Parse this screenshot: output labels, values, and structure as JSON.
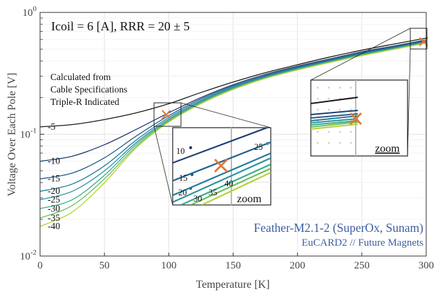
{
  "chart_data": {
    "type": "line",
    "title": "",
    "xlabel": "Temperature [K]",
    "ylabel": "Voltage Over Each Pole [V]",
    "xlim": [
      0,
      300
    ],
    "ylim": [
      0.01,
      1
    ],
    "yscale": "log",
    "grid": true,
    "x_ticks": [
      "0",
      "50",
      "100",
      "150",
      "200",
      "250",
      "300"
    ],
    "y_ticks": [
      {
        "base": "10",
        "exp": "0",
        "value": 1
      },
      {
        "base": "10",
        "exp": "-1",
        "value": 0.1
      },
      {
        "base": "10",
        "exp": "-2",
        "value": 0.01
      }
    ],
    "annotations": {
      "top_left": "Icoil = 6 [A], RRR = 20 ± 5",
      "calc_lines": [
        "Calculated from",
        "Cable Specifications",
        "Triple-R Indicated"
      ],
      "footer_line1": "Feather-M2.1-2 (SuperOx, Sunam)",
      "footer_line2": "EuCARD2 // Future Magnets",
      "zoom_label": "zoom"
    },
    "series": [
      {
        "label": "-5",
        "color": "#1a1a1a",
        "y0": 0.115,
        "x": [
          0,
          25,
          50,
          75,
          100,
          125,
          150,
          175,
          200,
          225,
          250,
          275,
          300
        ],
        "y": [
          0.115,
          0.12,
          0.132,
          0.15,
          0.178,
          0.22,
          0.268,
          0.32,
          0.372,
          0.43,
          0.49,
          0.55,
          0.615
        ]
      },
      {
        "label": "-10",
        "color": "#1f3e70",
        "y0": 0.06,
        "x": [
          0,
          25,
          50,
          75,
          100,
          125,
          150,
          175,
          200,
          225,
          250,
          275,
          300
        ],
        "y": [
          0.06,
          0.066,
          0.082,
          0.11,
          0.15,
          0.2,
          0.255,
          0.31,
          0.362,
          0.415,
          0.475,
          0.53,
          0.595
        ]
      },
      {
        "label": "-15",
        "color": "#1f5f8b",
        "y0": 0.043,
        "x": [
          0,
          25,
          50,
          75,
          100,
          125,
          150,
          175,
          200,
          225,
          250,
          275,
          300
        ],
        "y": [
          0.043,
          0.048,
          0.064,
          0.097,
          0.142,
          0.195,
          0.25,
          0.304,
          0.356,
          0.408,
          0.466,
          0.522,
          0.585
        ]
      },
      {
        "label": "-20",
        "color": "#227a9a",
        "y0": 0.034,
        "x": [
          0,
          25,
          50,
          75,
          100,
          125,
          150,
          175,
          200,
          225,
          250,
          275,
          300
        ],
        "y": [
          0.034,
          0.039,
          0.055,
          0.09,
          0.137,
          0.19,
          0.245,
          0.299,
          0.351,
          0.402,
          0.459,
          0.515,
          0.578
        ]
      },
      {
        "label": "-25",
        "color": "#2a94a0",
        "y0": 0.029,
        "x": [
          0,
          25,
          50,
          75,
          100,
          125,
          150,
          175,
          200,
          225,
          250,
          275,
          300
        ],
        "y": [
          0.029,
          0.034,
          0.05,
          0.086,
          0.133,
          0.186,
          0.241,
          0.295,
          0.346,
          0.397,
          0.453,
          0.51,
          0.572
        ]
      },
      {
        "label": "-30",
        "color": "#3aab8c",
        "y0": 0.0245,
        "x": [
          0,
          25,
          50,
          75,
          100,
          125,
          150,
          175,
          200,
          225,
          250,
          275,
          300
        ],
        "y": [
          0.0245,
          0.029,
          0.046,
          0.083,
          0.13,
          0.183,
          0.238,
          0.292,
          0.342,
          0.393,
          0.449,
          0.505,
          0.567
        ]
      },
      {
        "label": "-35",
        "color": "#6cbf5a",
        "y0": 0.0205,
        "x": [
          0,
          25,
          50,
          75,
          100,
          125,
          150,
          175,
          200,
          225,
          250,
          275,
          300
        ],
        "y": [
          0.0205,
          0.026,
          0.043,
          0.08,
          0.128,
          0.18,
          0.235,
          0.289,
          0.339,
          0.39,
          0.445,
          0.501,
          0.563
        ]
      },
      {
        "label": "-40",
        "color": "#b5cf3a",
        "y0": 0.0175,
        "x": [
          0,
          25,
          50,
          75,
          100,
          125,
          150,
          175,
          200,
          225,
          250,
          275,
          300
        ],
        "y": [
          0.0175,
          0.023,
          0.04,
          0.078,
          0.126,
          0.178,
          0.233,
          0.287,
          0.337,
          0.388,
          0.442,
          0.498,
          0.56
        ]
      }
    ],
    "markers": [
      {
        "x": 98,
        "y": 0.145,
        "symbol": "cross",
        "color": "#e07b39"
      },
      {
        "x": 298,
        "y": 0.575,
        "symbol": "cross",
        "color": "#e07b39"
      }
    ],
    "zoom_lower_labels": [
      "10",
      "15",
      "20",
      "25",
      "30",
      "35",
      "40"
    ]
  }
}
